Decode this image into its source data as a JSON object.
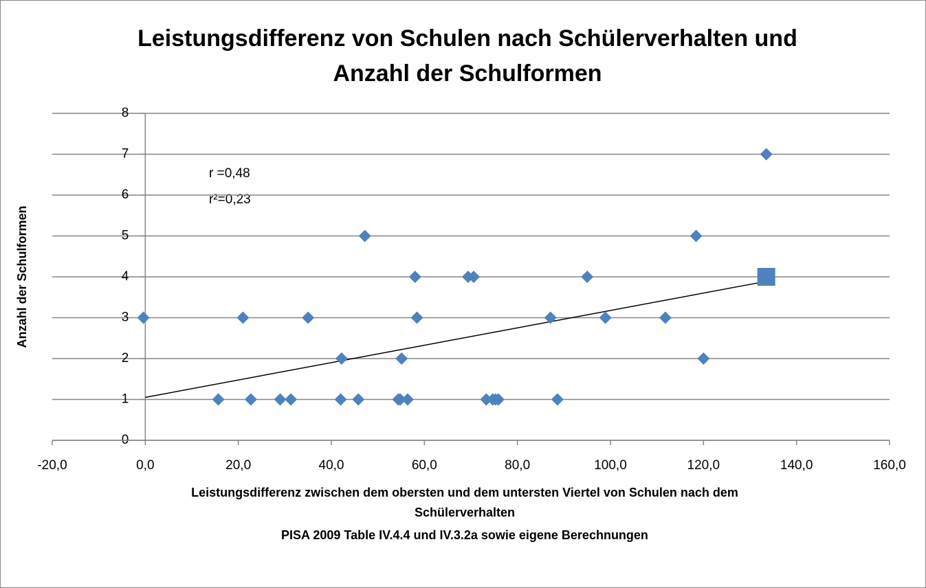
{
  "chart_data": {
    "type": "scatter",
    "title": [
      "Leistungsdifferenz von Schulen nach Schülerverhalten und",
      "Anzahl der Schulformen"
    ],
    "x_label": [
      "Leistungsdifferenz zwischen dem obersten und dem untersten Viertel von Schulen nach dem",
      "Schülerverhalten"
    ],
    "source": "PISA 2009 Table IV.4.4 und IV.3.2a sowie eigene Berechnungen",
    "y_label": "Anzahl der Schulformen",
    "annotations": [
      "r =0,48",
      "r²=0,23"
    ],
    "xlim": [
      -20,
      160
    ],
    "ylim": [
      0,
      8
    ],
    "xticks": [
      {
        "value": -20,
        "label": "-20,0"
      },
      {
        "value": 0,
        "label": "0,0"
      },
      {
        "value": 20,
        "label": "20,0"
      },
      {
        "value": 40,
        "label": "40,0"
      },
      {
        "value": 60,
        "label": "60,0"
      },
      {
        "value": 80,
        "label": "80,0"
      },
      {
        "value": 100,
        "label": "100,0"
      },
      {
        "value": 120,
        "label": "120,0"
      },
      {
        "value": 140,
        "label": "140,0"
      },
      {
        "value": 160,
        "label": "160,0"
      }
    ],
    "yticks": [
      0,
      1,
      2,
      3,
      4,
      5,
      6,
      7,
      8
    ],
    "grid": true,
    "series": [
      {
        "marker": "diamond",
        "color": "#4f81bd",
        "x": [
          -0.4,
          15.7,
          22.7,
          29,
          31.3,
          21,
          35,
          42,
          42.2,
          45.8,
          47.2,
          54.4,
          54.8,
          55.1,
          56.4,
          58,
          58.4,
          69.4,
          70.6,
          73.3,
          74.7,
          75.3,
          75.9,
          87.1,
          88.6,
          95,
          98.9,
          111.8,
          118.4,
          120,
          133.5
        ],
        "values": [
          3,
          1,
          1,
          1,
          1,
          3,
          3,
          1,
          2,
          1,
          5,
          1,
          1,
          2,
          1,
          4,
          3,
          4,
          4,
          1,
          1,
          1,
          1,
          3,
          1,
          4,
          3,
          3,
          5,
          2,
          7
        ]
      },
      {
        "marker": "square",
        "color": "#4f81bd",
        "x": [
          133.5
        ],
        "values": [
          4
        ]
      }
    ],
    "trendline": {
      "color": "#000000",
      "x": [
        0,
        134
      ],
      "values": [
        1.05,
        3.9
      ]
    }
  }
}
